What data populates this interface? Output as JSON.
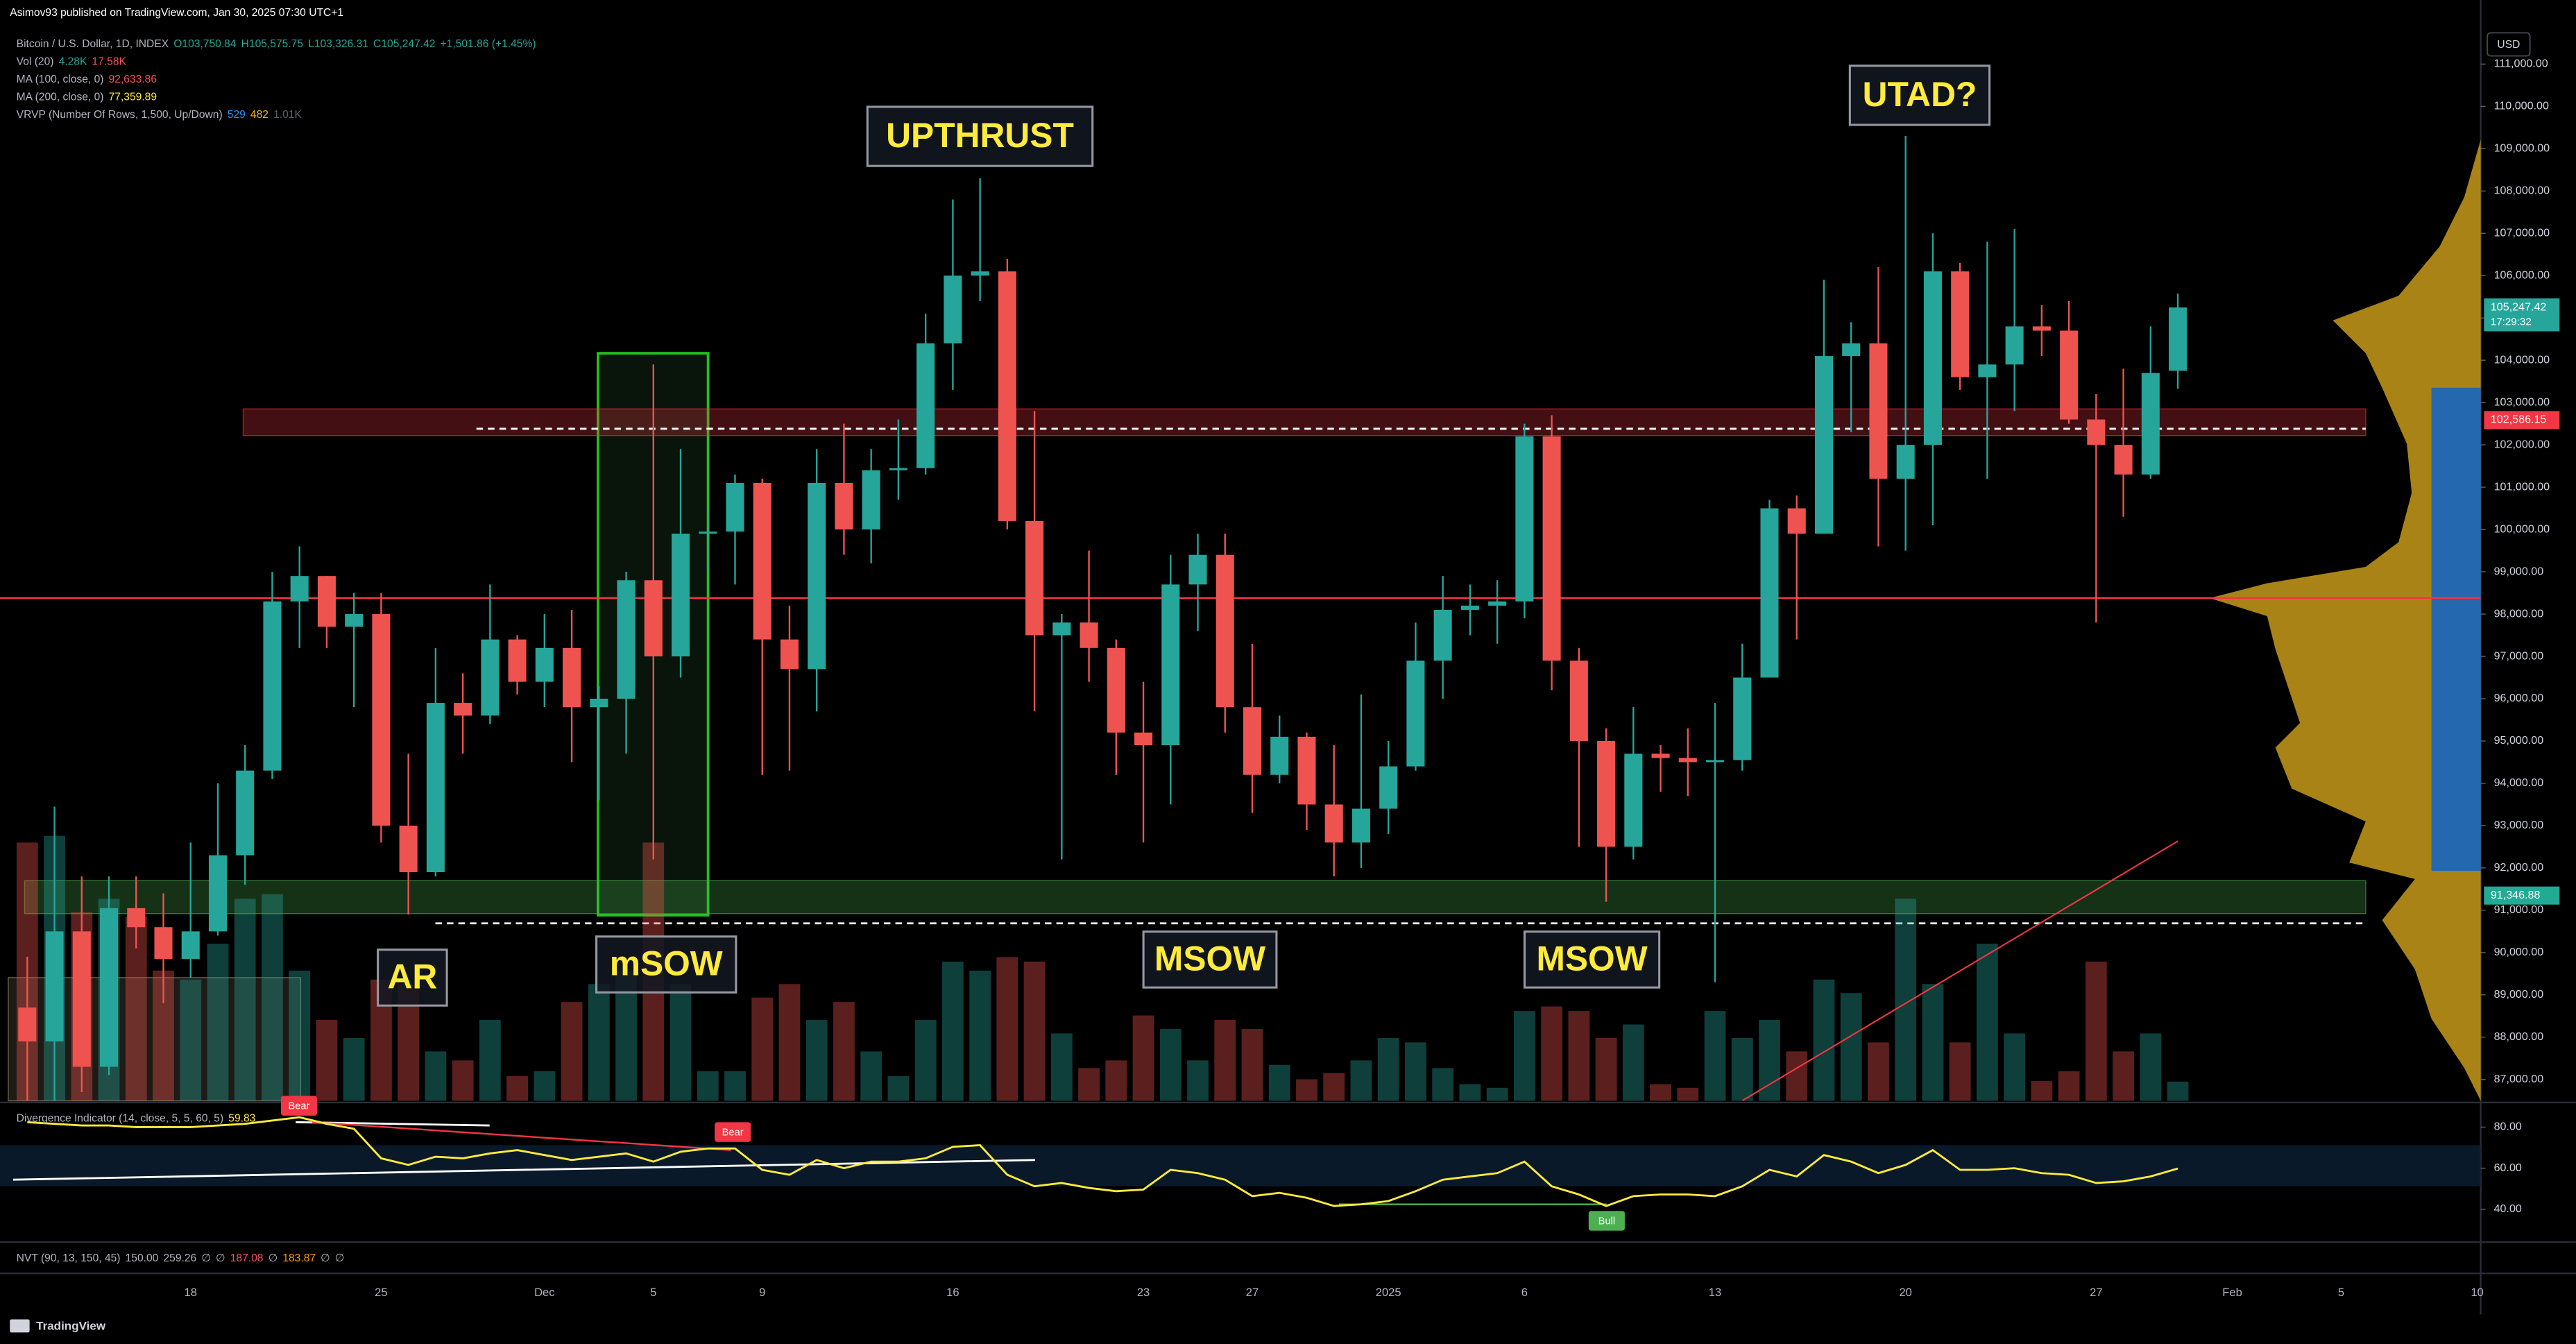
{
  "header": {
    "publisher": "Asimov93 published on TradingView.com, Jan 30, 2025 07:30 UTC+1",
    "legend": [
      {
        "name": "Bitcoin / U.S. Dollar, 1D, INDEX",
        "values": [
          "O103,750.84",
          "H105,575.75",
          "L103,326.31",
          "C105,247.42",
          "+1,501.86 (+1.45%)"
        ]
      },
      {
        "name": "Vol (20)",
        "values": [
          "4.28K",
          "17.58K"
        ]
      },
      {
        "name": "MA (100, close, 0)",
        "values": [
          "92,633.86"
        ]
      },
      {
        "name": "MA (200, close, 0)",
        "values": [
          "77,359.89"
        ]
      },
      {
        "name": "VRVP (Number Of Rows, 1,500, Up/Down)",
        "values": [
          "529",
          "482",
          "1.01K"
        ]
      }
    ],
    "nvt": {
      "name": "NVT (90, 13, 150, 45)",
      "values": [
        "150.00",
        "259.26",
        "∅",
        "∅",
        "187.08",
        "∅",
        "183.87",
        "∅",
        "∅"
      ]
    },
    "currency": "USD",
    "brand": "TradingView"
  },
  "chart_data": [
    {
      "type": "candlestick",
      "categories": [
        null,
        null,
        null,
        null,
        null,
        null,
        "18",
        null,
        null,
        null,
        null,
        null,
        null,
        "25",
        null,
        null,
        null,
        null,
        null,
        "Dec",
        null,
        null,
        null,
        "5",
        null,
        null,
        null,
        "9",
        null,
        null,
        null,
        null,
        null,
        null,
        "16",
        null,
        null,
        null,
        null,
        null,
        null,
        "23",
        null,
        null,
        null,
        "27",
        null,
        null,
        null,
        null,
        "2025",
        null,
        null,
        null,
        null,
        "6",
        null,
        null,
        null,
        null,
        null,
        null,
        "13",
        null,
        null,
        null,
        null,
        null,
        null,
        "20",
        null,
        null,
        null,
        null,
        null,
        null,
        "27",
        null,
        null,
        null,
        null,
        "Feb",
        null,
        null,
        null,
        "5",
        null,
        null,
        null,
        null,
        "10"
      ],
      "ohlc": [
        [
          88700,
          89900,
          85100,
          87900
        ],
        [
          87900,
          93450,
          86300,
          90500
        ],
        [
          90500,
          91800,
          86700,
          87300
        ],
        [
          87300,
          91800,
          87100,
          91050
        ],
        [
          91050,
          91800,
          90100,
          90600
        ],
        [
          90600,
          91400,
          88800,
          89850
        ],
        [
          89850,
          92600,
          89400,
          90500
        ],
        [
          90500,
          94000,
          90400,
          92300
        ],
        [
          92300,
          94900,
          91600,
          94300
        ],
        [
          94300,
          99000,
          94100,
          98300
        ],
        [
          98300,
          99600,
          97200,
          98900
        ],
        [
          98900,
          98900,
          97200,
          97700
        ],
        [
          97700,
          98500,
          95800,
          98000
        ],
        [
          98000,
          98500,
          92600,
          93000
        ],
        [
          93000,
          94700,
          90900,
          91900
        ],
        [
          91900,
          97200,
          91800,
          95900
        ],
        [
          95900,
          96600,
          94700,
          95600
        ],
        [
          95600,
          98700,
          95400,
          97400
        ],
        [
          97400,
          97500,
          96100,
          96400
        ],
        [
          96400,
          98000,
          95800,
          97200
        ],
        [
          97200,
          98100,
          94500,
          95800
        ],
        [
          95800,
          96300,
          93600,
          96000
        ],
        [
          96000,
          99000,
          94700,
          98800
        ],
        [
          98800,
          103900,
          92200,
          97000
        ],
        [
          97000,
          101900,
          96500,
          99900
        ],
        [
          99900,
          100500,
          99000,
          99950
        ],
        [
          99950,
          101300,
          98700,
          101100
        ],
        [
          101100,
          101200,
          94200,
          97400
        ],
        [
          97400,
          98200,
          94300,
          96700
        ],
        [
          96700,
          101900,
          95700,
          101100
        ],
        [
          101100,
          102500,
          99400,
          100000
        ],
        [
          100000,
          101900,
          99200,
          101400
        ],
        [
          101400,
          102600,
          100700,
          101450
        ],
        [
          101450,
          105100,
          101300,
          104400
        ],
        [
          104400,
          107800,
          103300,
          106000
        ],
        [
          106000,
          108300,
          105400,
          106100
        ],
        [
          106100,
          106400,
          100000,
          100200
        ],
        [
          100200,
          102800,
          95700,
          97500
        ],
        [
          97500,
          98000,
          92200,
          97800
        ],
        [
          97800,
          99500,
          96400,
          97200
        ],
        [
          97200,
          97400,
          94200,
          95200
        ],
        [
          95200,
          96400,
          92600,
          94900
        ],
        [
          94900,
          99400,
          93500,
          98700
        ],
        [
          98700,
          99900,
          97600,
          99400
        ],
        [
          99400,
          99900,
          95200,
          95800
        ],
        [
          95800,
          97300,
          93300,
          94200
        ],
        [
          94200,
          95600,
          94000,
          95100
        ],
        [
          95100,
          95200,
          92900,
          93500
        ],
        [
          93500,
          94900,
          91800,
          92600
        ],
        [
          92600,
          96100,
          92000,
          93400
        ],
        [
          93400,
          95000,
          92800,
          94400
        ],
        [
          94400,
          97800,
          94300,
          96900
        ],
        [
          96900,
          98900,
          96000,
          98100
        ],
        [
          98100,
          98700,
          97500,
          98200
        ],
        [
          98200,
          98800,
          97300,
          98300
        ],
        [
          98300,
          102500,
          97900,
          102200
        ],
        [
          102200,
          102700,
          96200,
          96900
        ],
        [
          96900,
          97200,
          92500,
          95000
        ],
        [
          95000,
          95300,
          91200,
          92500
        ],
        [
          92500,
          95800,
          92200,
          94700
        ],
        [
          94700,
          94900,
          93800,
          94600
        ],
        [
          94600,
          95300,
          93700,
          94500
        ],
        [
          94500,
          95900,
          89300,
          94550
        ],
        [
          94550,
          97300,
          94300,
          96500
        ],
        [
          96500,
          100700,
          96500,
          100500
        ],
        [
          100500,
          100800,
          97400,
          99900
        ],
        [
          99900,
          105900,
          99900,
          104100
        ],
        [
          104100,
          104900,
          102300,
          104400
        ],
        [
          104400,
          106200,
          99600,
          101200
        ],
        [
          101200,
          109300,
          99500,
          102000
        ],
        [
          102000,
          107000,
          100100,
          106100
        ],
        [
          106100,
          106300,
          103300,
          103600
        ],
        [
          103600,
          106800,
          101200,
          103900
        ],
        [
          103900,
          107100,
          102800,
          104800
        ],
        [
          104800,
          105300,
          104100,
          104700
        ],
        [
          104700,
          105400,
          102500,
          102600
        ],
        [
          102600,
          103200,
          97800,
          102000
        ],
        [
          102000,
          103800,
          100300,
          101300
        ],
        [
          101300,
          104800,
          101200,
          103700
        ],
        [
          103750.84,
          105575.75,
          103326.31,
          105247.42
        ],
        null,
        null,
        null,
        null,
        null,
        null,
        null,
        null,
        null,
        null,
        null
      ],
      "up_color": "#26a69a",
      "down_color": "#ef5350",
      "volume": {
        "values": [
          57.5,
          59,
          42,
          45,
          41,
          29,
          27,
          35,
          45,
          46,
          29,
          18,
          14,
          27,
          26,
          11,
          9,
          18,
          5.5,
          6.6,
          22,
          26,
          29,
          57.5,
          26,
          6.6,
          6.6,
          23,
          26,
          18,
          22,
          11,
          5.5,
          18,
          31,
          29,
          32,
          31,
          15,
          7.3,
          9,
          19,
          16,
          9,
          18,
          16,
          8,
          4.8,
          6.2,
          9,
          14,
          13,
          7.3,
          3.7,
          2.9,
          20,
          21,
          20,
          14,
          17,
          3.7,
          2.9,
          20,
          14,
          18,
          11,
          27,
          24,
          13,
          45,
          26,
          13,
          35,
          15,
          4.4,
          6.6,
          31,
          11,
          15,
          4.28,
          null,
          null,
          null,
          null,
          null,
          null,
          null,
          null,
          null,
          null,
          null
        ],
        "ylim": [
          0,
          60
        ]
      },
      "series": [
        {
          "name": "MA (100, close, 0)",
          "color": "#f23645",
          "values": [
            null,
            null,
            null,
            null,
            null,
            null,
            null,
            null,
            null,
            null,
            null,
            null,
            null,
            null,
            null,
            null,
            null,
            null,
            null,
            null,
            null,
            null,
            null,
            null,
            null,
            null,
            null,
            null,
            null,
            null,
            null,
            null,
            null,
            null,
            null,
            null,
            null,
            null,
            null,
            null,
            null,
            null,
            null,
            null,
            null,
            null,
            null,
            null,
            null,
            null,
            null,
            null,
            null,
            null,
            null,
            null,
            null,
            null,
            null,
            null,
            null,
            null,
            null,
            86500,
            86883,
            87267,
            87650,
            88033,
            88417,
            88800,
            89183,
            89567,
            89950,
            90333,
            90717,
            91100,
            91483,
            91867,
            92250,
            92633.86,
            null,
            null,
            null,
            null,
            null,
            null,
            null,
            null,
            null,
            null,
            null
          ]
        }
      ],
      "ylim": [
        86495,
        112515
      ],
      "yticks": [
        {
          "value": 87000,
          "label": "87,000.00"
        },
        {
          "value": 88000,
          "label": "88,000.00"
        },
        {
          "value": 89000,
          "label": "89,000.00"
        },
        {
          "value": 90000,
          "label": "90,000.00"
        },
        {
          "value": 91000,
          "label": "91,000.00"
        },
        {
          "value": 92000,
          "label": "92,000.00"
        },
        {
          "value": 93000,
          "label": "93,000.00"
        },
        {
          "value": 94000,
          "label": "94,000.00"
        },
        {
          "value": 95000,
          "label": "95,000.00"
        },
        {
          "value": 96000,
          "label": "96,000.00"
        },
        {
          "value": 97000,
          "label": "97,000.00"
        },
        {
          "value": 98000,
          "label": "98,000.00"
        },
        {
          "value": 99000,
          "label": "99,000.00"
        },
        {
          "value": 100000,
          "label": "100,000.00"
        },
        {
          "value": 101000,
          "label": "101,000.00"
        },
        {
          "value": 102000,
          "label": "102,000.00"
        },
        {
          "value": 103000,
          "label": "103,000.00"
        },
        {
          "value": 104000,
          "label": "104,000.00"
        },
        {
          "value": 105000,
          "label": "105,000.00"
        },
        {
          "value": 106000,
          "label": "106,000.00"
        },
        {
          "value": 107000,
          "label": "107,000.00"
        },
        {
          "value": 108000,
          "label": "108,000.00"
        },
        {
          "value": 109000,
          "label": "109,000.00"
        },
        {
          "value": 110000,
          "label": "110,000.00"
        },
        {
          "value": 111000,
          "label": "111,000.00"
        }
      ],
      "grid": false,
      "levels": [
        {
          "value": 98380,
          "color": "#f23645",
          "dashed": false
        },
        {
          "value": 102380,
          "color": "#ffffff",
          "dashed": true
        },
        {
          "value": 90690,
          "color": "#ffffff",
          "dashed": true
        }
      ],
      "zones": [
        {
          "from": 102220,
          "to": 102850,
          "color": "#f23645"
        },
        {
          "from": 90920,
          "to": 91700,
          "color": "#4caf50"
        }
      ],
      "price_labels": [
        {
          "value": 105247.42,
          "label": "105,247.42",
          "sub": "17:29:32",
          "color": "#26a69a"
        },
        {
          "value": 102586.15,
          "label": "102,586.15",
          "color": "#f23645"
        },
        {
          "value": 91346.88,
          "label": "91,346.88",
          "color": "#22ab94"
        }
      ],
      "annotations": [
        "UPTHRUST",
        "UTAD?",
        "AR",
        "mSOW",
        "MSOW",
        "MSOW"
      ]
    },
    {
      "type": "line",
      "name": "Divergence Indicator (14, close, 5, 5, 60, 5)",
      "value_label": "59.83",
      "color": "#ffeb3b",
      "values": [
        82.4,
        81.6,
        80.8,
        80.8,
        80,
        80,
        80,
        80.8,
        81.6,
        83.2,
        84.8,
        81.6,
        79.2,
        64.8,
        61.6,
        65.6,
        64.8,
        67.2,
        68.8,
        66.4,
        64,
        65.6,
        67.2,
        63.2,
        68,
        69.6,
        69.6,
        59.2,
        56.8,
        64,
        60,
        63.2,
        63.2,
        64.8,
        70.4,
        71.2,
        56.8,
        51.2,
        52.8,
        50.4,
        48.8,
        49.6,
        59.2,
        57.6,
        54.4,
        46.4,
        48,
        45.6,
        41.6,
        42.4,
        44,
        48.8,
        54.4,
        56,
        57.6,
        63.2,
        51.2,
        47.2,
        41.6,
        46.4,
        47.2,
        47.2,
        46.4,
        51.2,
        59.2,
        56,
        66.4,
        63.2,
        57.6,
        61.6,
        68.8,
        59.2,
        59.2,
        60,
        57.6,
        56.8,
        52.8,
        53.6,
        56,
        59.83,
        null,
        null,
        null,
        null,
        null,
        null,
        null,
        null,
        null,
        null,
        null
      ],
      "ylim": [
        24.8,
        91.2
      ],
      "yticks": [
        {
          "value": 80,
          "label": "80.00"
        },
        {
          "value": 60,
          "label": "60.00"
        },
        {
          "value": 40,
          "label": "40.00"
        }
      ],
      "signals": [
        "Bear",
        "Bear",
        "Bull"
      ]
    }
  ]
}
